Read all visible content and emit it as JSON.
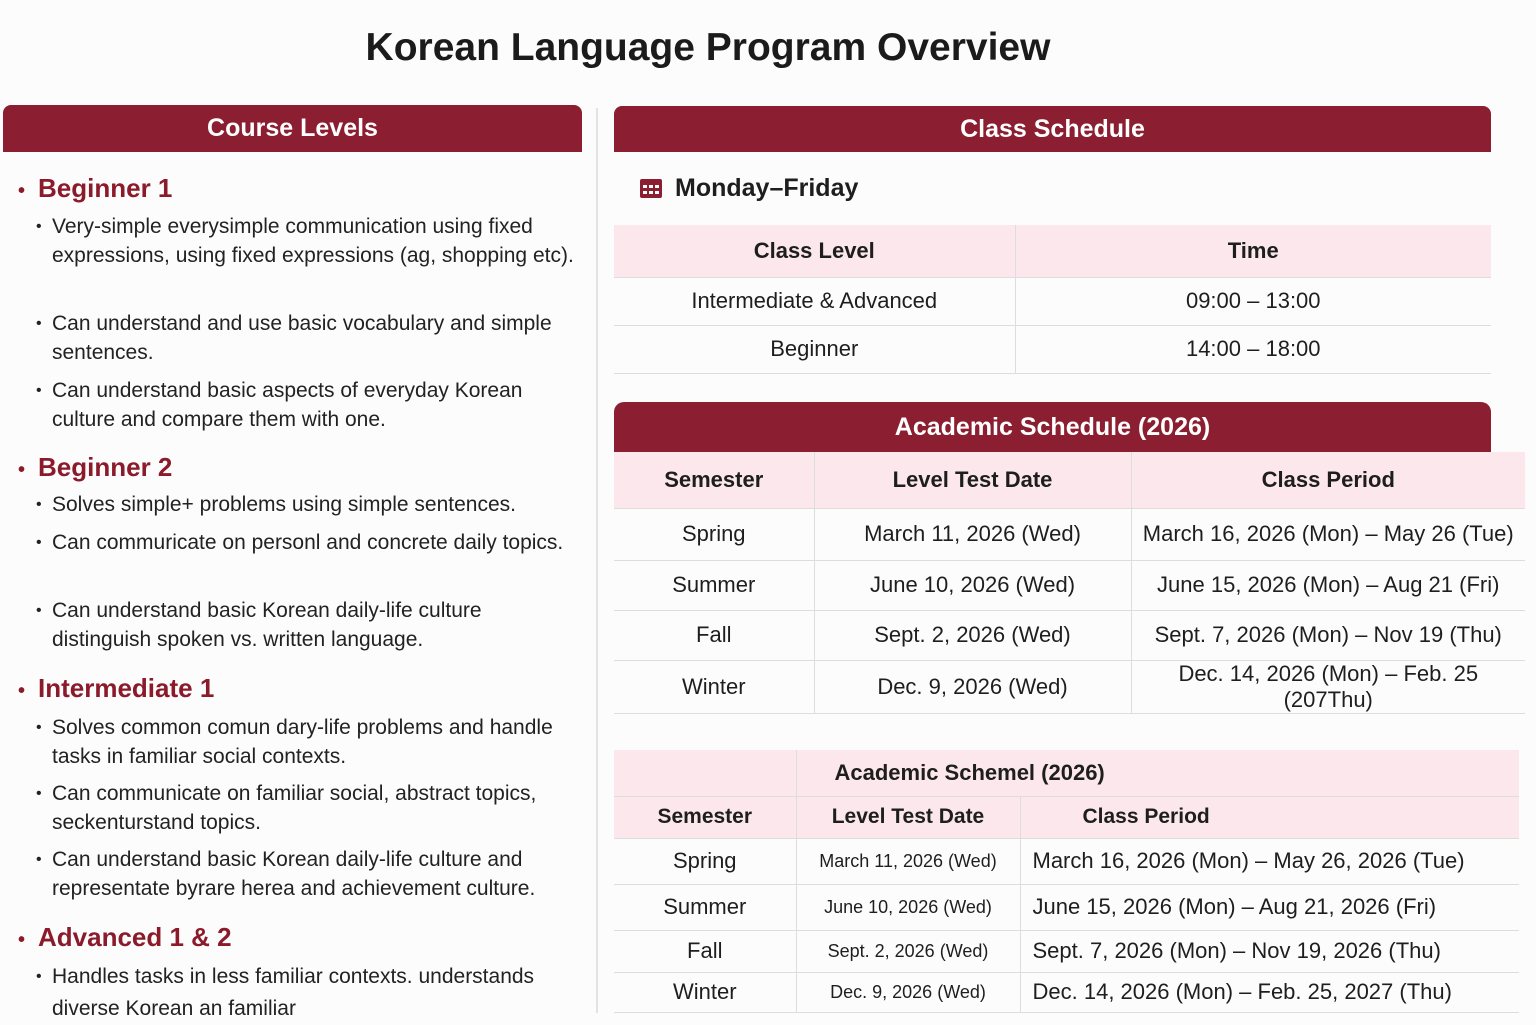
{
  "title": "Korean Language Program Overview",
  "course_levels": {
    "header": "Course Levels",
    "levels": [
      {
        "name": "Beginner 1",
        "items": [
          "Very-simple everysimple communication using fixed expressions, using fixed expressions (ag, shopping etc).",
          "Can understand and use basic vocabulary and simple sentences.",
          "Can understand basic aspects of everyday Korean culture and compare them with one."
        ]
      },
      {
        "name": "Beginner 2",
        "items": [
          "Solves simple+ problems using simple sentences.",
          "Can commuricate on personl and concrete daily topics.",
          "Can understand basic Korean daily-life culture distinguish spoken vs. written language."
        ]
      },
      {
        "name": "Intermediate 1",
        "items": [
          "Solves common comun dary-life problems and handle tasks in familiar social contexts.",
          "Can communicate on familiar social, abstract topics, seckenturstand topics.",
          "Can understand basic Korean daily-life culture and representate byrare herea and achievement culture."
        ]
      },
      {
        "name": "Advanced 1 & 2",
        "items": [
          "Handles tasks in less familiar contexts. understands diverse Korean an familiar"
        ]
      }
    ]
  },
  "class_schedule": {
    "header": "Class Schedule",
    "days": "Monday–Friday",
    "icon": "calendar-icon",
    "columns": [
      "Class Level",
      "Time"
    ],
    "rows": [
      [
        "Intermediate & Advanced",
        "09:00 – 13:00"
      ],
      [
        "Beginner",
        "14:00 – 18:00"
      ]
    ]
  },
  "academic_schedule": {
    "header": "Academic Schedule (2026)",
    "columns": [
      "Semester",
      "Level Test Date",
      "Class Period"
    ],
    "rows": [
      [
        "Spring",
        "March 11, 2026 (Wed)",
        "March 16, 2026 (Mon) – May 26 (Tue)"
      ],
      [
        "Summer",
        "June 10, 2026 (Wed)",
        "June 15, 2026 (Mon) – Aug 21 (Fri)"
      ],
      [
        "Fall",
        "Sept. 2, 2026 (Wed)",
        "Sept. 7, 2026 (Mon) – Nov 19 (Thu)"
      ],
      [
        "Winter",
        "Dec. 9, 2026 (Wed)",
        "Dec. 14, 2026 (Mon) – Feb. 25 (207Thu)"
      ]
    ]
  },
  "academic_scheme": {
    "header": "Academic Schemel (2026)",
    "columns": [
      "Semester",
      "Level Test Date",
      "Class Period"
    ],
    "rows": [
      [
        "Spring",
        "March 11, 2026 (Wed)",
        "March 16, 2026 (Mon) – May 26, 2026 (Tue)"
      ],
      [
        "Summer",
        "June 10, 2026 (Wed)",
        "June 15, 2026 (Mon) – Aug 21, 2026 (Fri)"
      ],
      [
        "Fall",
        "Sept. 2, 2026 (Wed)",
        "Sept. 7, 2026 (Mon) – Nov 19, 2026 (Thu)"
      ],
      [
        "Winter",
        "Dec. 9, 2026 (Wed)",
        "Dec. 14, 2026 (Mon) – Feb. 25, 2027 (Thu)"
      ]
    ]
  },
  "colors": {
    "accent": "#8b1e30",
    "header_row": "#fce8ec"
  }
}
